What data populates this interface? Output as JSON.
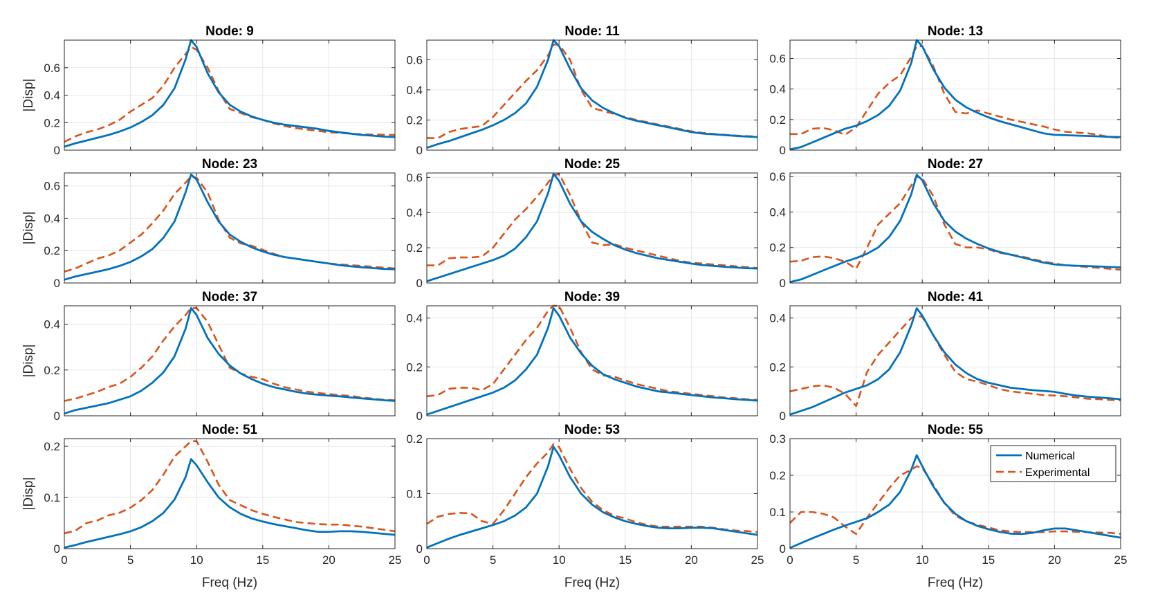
{
  "colors": {
    "numerical": "#0072BD",
    "experimental": "#D95319",
    "grid": "#e6e6e6",
    "axis": "#262626"
  },
  "chart_data": {
    "type": "line",
    "layout": "4x3 grid of subplots",
    "x": [
      0,
      0.833,
      1.667,
      2.5,
      3.333,
      4.167,
      5,
      5.833,
      6.667,
      7.5,
      8.333,
      9.167,
      9.583,
      10,
      10.833,
      11.667,
      12.5,
      13.333,
      14.167,
      15,
      15.833,
      16.667,
      17.5,
      18.333,
      19.167,
      20,
      20.833,
      21.667,
      22.5,
      23.333,
      24.167,
      25
    ],
    "xlabel": "Freq (Hz)",
    "ylabel": "|Disp|",
    "xlim": [
      0,
      25
    ],
    "xticks": [
      0,
      5,
      10,
      15,
      20,
      25
    ],
    "grid": true,
    "legend": {
      "placement": "top-right of last subplot",
      "entries": [
        "Numerical",
        "Experimental"
      ]
    },
    "series_names": [
      "Numerical",
      "Experimental"
    ],
    "panels": [
      {
        "title": "Node: 9",
        "ylim": [
          0,
          0.8
        ],
        "yticks": [
          0,
          0.2,
          0.4,
          0.6
        ],
        "numerical": [
          0.025,
          0.05,
          0.07,
          0.09,
          0.11,
          0.135,
          0.165,
          0.205,
          0.255,
          0.33,
          0.45,
          0.66,
          0.8,
          0.75,
          0.56,
          0.42,
          0.33,
          0.28,
          0.245,
          0.22,
          0.2,
          0.185,
          0.175,
          0.165,
          0.155,
          0.14,
          0.13,
          0.12,
          0.11,
          0.105,
          0.098,
          0.095
        ],
        "experimental": [
          0.06,
          0.1,
          0.13,
          0.15,
          0.18,
          0.22,
          0.28,
          0.33,
          0.38,
          0.47,
          0.6,
          0.7,
          0.75,
          0.73,
          0.6,
          0.43,
          0.3,
          0.27,
          0.24,
          0.22,
          0.195,
          0.175,
          0.16,
          0.15,
          0.14,
          0.13,
          0.125,
          0.12,
          0.115,
          0.113,
          0.112,
          0.11
        ]
      },
      {
        "title": "Node: 11",
        "ylim": [
          0,
          0.73
        ],
        "yticks": [
          0,
          0.2,
          0.4,
          0.6
        ],
        "numerical": [
          0.015,
          0.04,
          0.06,
          0.085,
          0.11,
          0.135,
          0.165,
          0.2,
          0.245,
          0.31,
          0.42,
          0.6,
          0.73,
          0.69,
          0.54,
          0.41,
          0.33,
          0.28,
          0.245,
          0.215,
          0.195,
          0.18,
          0.165,
          0.15,
          0.135,
          0.12,
          0.11,
          0.105,
          0.1,
          0.095,
          0.09,
          0.087
        ],
        "experimental": [
          0.08,
          0.08,
          0.12,
          0.14,
          0.15,
          0.16,
          0.22,
          0.3,
          0.38,
          0.46,
          0.53,
          0.63,
          0.7,
          0.7,
          0.6,
          0.4,
          0.28,
          0.26,
          0.24,
          0.22,
          0.2,
          0.185,
          0.17,
          0.155,
          0.14,
          0.125,
          0.115,
          0.108,
          0.102,
          0.097,
          0.093,
          0.09
        ]
      },
      {
        "title": "Node: 13",
        "ylim": [
          0,
          0.72
        ],
        "yticks": [
          0,
          0.2,
          0.4,
          0.6
        ],
        "numerical": [
          0.005,
          0.02,
          0.05,
          0.08,
          0.11,
          0.14,
          0.16,
          0.19,
          0.23,
          0.29,
          0.39,
          0.57,
          0.72,
          0.68,
          0.53,
          0.41,
          0.33,
          0.28,
          0.245,
          0.215,
          0.19,
          0.17,
          0.15,
          0.13,
          0.11,
          0.1,
          0.098,
          0.095,
          0.093,
          0.09,
          0.087,
          0.085
        ],
        "experimental": [
          0.105,
          0.105,
          0.14,
          0.145,
          0.13,
          0.1,
          0.15,
          0.26,
          0.37,
          0.44,
          0.49,
          0.61,
          0.68,
          0.68,
          0.55,
          0.37,
          0.25,
          0.24,
          0.26,
          0.24,
          0.22,
          0.2,
          0.185,
          0.17,
          0.155,
          0.135,
          0.12,
          0.115,
          0.11,
          0.1,
          0.085,
          0.08
        ]
      },
      {
        "title": "Node: 23",
        "ylim": [
          0,
          0.68
        ],
        "yticks": [
          0,
          0.2,
          0.4,
          0.6
        ],
        "numerical": [
          0.02,
          0.04,
          0.055,
          0.07,
          0.085,
          0.105,
          0.13,
          0.165,
          0.21,
          0.28,
          0.38,
          0.56,
          0.67,
          0.64,
          0.5,
          0.38,
          0.3,
          0.255,
          0.22,
          0.195,
          0.175,
          0.16,
          0.15,
          0.14,
          0.13,
          0.12,
          0.11,
          0.103,
          0.097,
          0.092,
          0.087,
          0.085
        ],
        "experimental": [
          0.07,
          0.09,
          0.12,
          0.15,
          0.17,
          0.2,
          0.25,
          0.3,
          0.37,
          0.45,
          0.55,
          0.62,
          0.66,
          0.65,
          0.56,
          0.39,
          0.28,
          0.245,
          0.23,
          0.205,
          0.18,
          0.16,
          0.15,
          0.14,
          0.13,
          0.12,
          0.115,
          0.11,
          0.105,
          0.1,
          0.095,
          0.09
        ]
      },
      {
        "title": "Node: 25",
        "ylim": [
          0,
          0.625
        ],
        "yticks": [
          0,
          0.2,
          0.4,
          0.6
        ],
        "numerical": [
          0.01,
          0.03,
          0.05,
          0.07,
          0.09,
          0.11,
          0.13,
          0.155,
          0.195,
          0.26,
          0.35,
          0.51,
          0.62,
          0.58,
          0.45,
          0.35,
          0.29,
          0.25,
          0.215,
          0.19,
          0.17,
          0.155,
          0.14,
          0.13,
          0.12,
          0.11,
          0.102,
          0.097,
          0.092,
          0.088,
          0.084,
          0.082
        ],
        "experimental": [
          0.1,
          0.1,
          0.14,
          0.145,
          0.145,
          0.15,
          0.2,
          0.28,
          0.36,
          0.42,
          0.49,
          0.57,
          0.61,
          0.62,
          0.5,
          0.35,
          0.23,
          0.215,
          0.22,
          0.2,
          0.185,
          0.17,
          0.155,
          0.14,
          0.125,
          0.115,
          0.11,
          0.105,
          0.1,
          0.095,
          0.09,
          0.085
        ]
      },
      {
        "title": "Node: 27",
        "ylim": [
          0,
          0.62
        ],
        "yticks": [
          0,
          0.2,
          0.4,
          0.6
        ],
        "numerical": [
          0.005,
          0.02,
          0.045,
          0.07,
          0.095,
          0.12,
          0.14,
          0.165,
          0.2,
          0.26,
          0.35,
          0.5,
          0.61,
          0.58,
          0.45,
          0.35,
          0.29,
          0.25,
          0.22,
          0.195,
          0.175,
          0.16,
          0.145,
          0.13,
          0.115,
          0.105,
          0.1,
          0.097,
          0.095,
          0.093,
          0.09,
          0.088
        ],
        "experimental": [
          0.12,
          0.125,
          0.145,
          0.15,
          0.14,
          0.12,
          0.08,
          0.2,
          0.33,
          0.39,
          0.45,
          0.55,
          0.6,
          0.59,
          0.49,
          0.33,
          0.22,
          0.2,
          0.2,
          0.19,
          0.17,
          0.16,
          0.15,
          0.135,
          0.12,
          0.11,
          0.1,
          0.095,
          0.09,
          0.085,
          0.08,
          0.075
        ]
      },
      {
        "title": "Node: 37",
        "ylim": [
          0,
          0.48
        ],
        "yticks": [
          0,
          0.2,
          0.4
        ],
        "numerical": [
          0.01,
          0.025,
          0.035,
          0.045,
          0.055,
          0.07,
          0.085,
          0.11,
          0.145,
          0.19,
          0.26,
          0.38,
          0.47,
          0.44,
          0.34,
          0.27,
          0.22,
          0.185,
          0.16,
          0.14,
          0.125,
          0.115,
          0.105,
          0.097,
          0.092,
          0.088,
          0.085,
          0.08,
          0.076,
          0.072,
          0.068,
          0.065
        ],
        "experimental": [
          0.065,
          0.075,
          0.09,
          0.105,
          0.125,
          0.14,
          0.17,
          0.21,
          0.26,
          0.33,
          0.39,
          0.44,
          0.47,
          0.47,
          0.41,
          0.31,
          0.21,
          0.185,
          0.17,
          0.16,
          0.14,
          0.125,
          0.115,
          0.105,
          0.1,
          0.095,
          0.09,
          0.087,
          0.08,
          0.075,
          0.07,
          0.068
        ]
      },
      {
        "title": "Node: 39",
        "ylim": [
          0,
          0.45
        ],
        "yticks": [
          0,
          0.2,
          0.4
        ],
        "numerical": [
          0.005,
          0.02,
          0.035,
          0.05,
          0.065,
          0.08,
          0.095,
          0.115,
          0.145,
          0.19,
          0.25,
          0.36,
          0.44,
          0.41,
          0.32,
          0.255,
          0.205,
          0.17,
          0.15,
          0.135,
          0.12,
          0.11,
          0.1,
          0.095,
          0.09,
          0.085,
          0.08,
          0.075,
          0.072,
          0.068,
          0.065,
          0.062
        ],
        "experimental": [
          0.08,
          0.085,
          0.11,
          0.115,
          0.115,
          0.105,
          0.13,
          0.19,
          0.25,
          0.31,
          0.36,
          0.43,
          0.45,
          0.45,
          0.36,
          0.26,
          0.19,
          0.165,
          0.16,
          0.145,
          0.13,
          0.12,
          0.11,
          0.1,
          0.095,
          0.09,
          0.085,
          0.08,
          0.075,
          0.072,
          0.068,
          0.065
        ]
      },
      {
        "title": "Node: 41",
        "ylim": [
          0,
          0.45
        ],
        "yticks": [
          0,
          0.2,
          0.4
        ],
        "numerical": [
          0.005,
          0.02,
          0.035,
          0.055,
          0.075,
          0.095,
          0.11,
          0.125,
          0.15,
          0.19,
          0.26,
          0.37,
          0.44,
          0.41,
          0.33,
          0.26,
          0.21,
          0.175,
          0.15,
          0.135,
          0.125,
          0.115,
          0.11,
          0.105,
          0.102,
          0.098,
          0.09,
          0.083,
          0.078,
          0.075,
          0.072,
          0.068
        ],
        "experimental": [
          0.1,
          0.11,
          0.12,
          0.125,
          0.115,
          0.09,
          0.04,
          0.18,
          0.25,
          0.3,
          0.35,
          0.4,
          0.41,
          0.405,
          0.33,
          0.25,
          0.18,
          0.15,
          0.14,
          0.125,
          0.11,
          0.1,
          0.095,
          0.09,
          0.085,
          0.083,
          0.08,
          0.075,
          0.07,
          0.068,
          0.065,
          0.063
        ]
      },
      {
        "title": "Node: 51",
        "ylim": [
          0,
          0.215
        ],
        "yticks": [
          0,
          0.1,
          0.2
        ],
        "numerical": [
          0.002,
          0.007,
          0.013,
          0.018,
          0.023,
          0.028,
          0.034,
          0.042,
          0.054,
          0.07,
          0.096,
          0.14,
          0.175,
          0.163,
          0.13,
          0.1,
          0.081,
          0.068,
          0.059,
          0.053,
          0.048,
          0.044,
          0.04,
          0.036,
          0.033,
          0.033,
          0.034,
          0.034,
          0.033,
          0.031,
          0.029,
          0.027
        ],
        "experimental": [
          0.03,
          0.035,
          0.05,
          0.055,
          0.065,
          0.07,
          0.08,
          0.095,
          0.115,
          0.145,
          0.18,
          0.2,
          0.21,
          0.21,
          0.17,
          0.125,
          0.095,
          0.085,
          0.075,
          0.068,
          0.062,
          0.057,
          0.052,
          0.05,
          0.048,
          0.047,
          0.047,
          0.045,
          0.043,
          0.04,
          0.037,
          0.034
        ]
      },
      {
        "title": "Node: 53",
        "ylim": [
          0,
          0.2
        ],
        "yticks": [
          0,
          0.1,
          0.2
        ],
        "numerical": [
          0.002,
          0.01,
          0.018,
          0.025,
          0.031,
          0.037,
          0.043,
          0.05,
          0.06,
          0.075,
          0.1,
          0.15,
          0.185,
          0.17,
          0.13,
          0.1,
          0.08,
          0.066,
          0.057,
          0.05,
          0.045,
          0.041,
          0.038,
          0.037,
          0.037,
          0.038,
          0.038,
          0.037,
          0.034,
          0.031,
          0.028,
          0.025
        ],
        "experimental": [
          0.045,
          0.058,
          0.063,
          0.065,
          0.064,
          0.05,
          0.045,
          0.07,
          0.1,
          0.13,
          0.155,
          0.175,
          0.19,
          0.185,
          0.145,
          0.11,
          0.085,
          0.07,
          0.06,
          0.055,
          0.048,
          0.043,
          0.04,
          0.04,
          0.04,
          0.04,
          0.04,
          0.038,
          0.035,
          0.033,
          0.032,
          0.03
        ]
      },
      {
        "title": "Node: 55",
        "ylim": [
          0,
          0.3
        ],
        "yticks": [
          0,
          0.1,
          0.2,
          0.3
        ],
        "numerical": [
          0.002,
          0.015,
          0.028,
          0.04,
          0.052,
          0.063,
          0.073,
          0.083,
          0.1,
          0.12,
          0.155,
          0.215,
          0.255,
          0.225,
          0.17,
          0.125,
          0.095,
          0.075,
          0.062,
          0.053,
          0.046,
          0.041,
          0.04,
          0.043,
          0.05,
          0.055,
          0.055,
          0.05,
          0.045,
          0.04,
          0.035,
          0.03
        ],
        "experimental": [
          0.07,
          0.1,
          0.1,
          0.095,
          0.085,
          0.06,
          0.04,
          0.085,
          0.125,
          0.165,
          0.2,
          0.215,
          0.225,
          0.22,
          0.175,
          0.125,
          0.09,
          0.075,
          0.065,
          0.058,
          0.05,
          0.047,
          0.045,
          0.045,
          0.045,
          0.047,
          0.047,
          0.046,
          0.045,
          0.044,
          0.043,
          0.04
        ]
      }
    ]
  }
}
